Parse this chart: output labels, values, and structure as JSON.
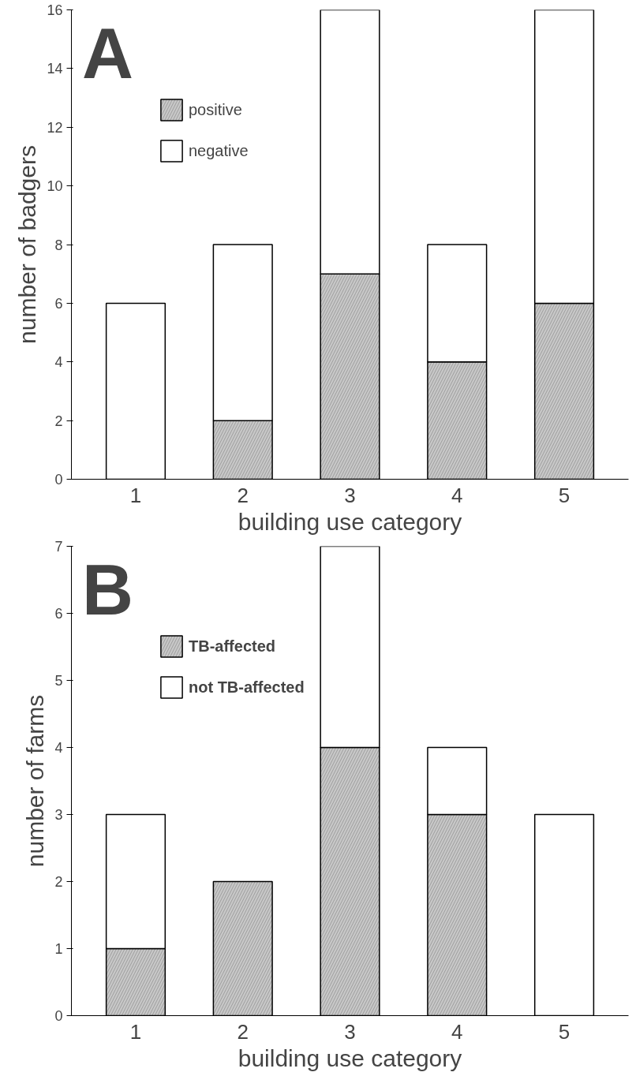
{
  "chart_data": [
    {
      "type": "bar",
      "title": "A",
      "stacked": true,
      "categories": [
        "1",
        "2",
        "3",
        "4",
        "5"
      ],
      "xlabel": "building use category",
      "ylabel": "number of badgers",
      "ylim": [
        0,
        16
      ],
      "yticks": [
        0,
        2,
        4,
        6,
        8,
        10,
        12,
        14,
        16
      ],
      "grid": false,
      "legend": "top left",
      "series": [
        {
          "name": "positive",
          "color": "#c8c8c8",
          "values": [
            0,
            2,
            7,
            4,
            6
          ]
        },
        {
          "name": "negative",
          "color": "#ffffff",
          "values": [
            6,
            6,
            9,
            4,
            10
          ]
        }
      ]
    },
    {
      "type": "bar",
      "title": "B",
      "stacked": true,
      "categories": [
        "1",
        "2",
        "3",
        "4",
        "5"
      ],
      "xlabel": "building use category",
      "ylabel": "number of farms",
      "ylim": [
        0,
        7
      ],
      "yticks": [
        0,
        1,
        2,
        3,
        4,
        5,
        6,
        7
      ],
      "grid": false,
      "legend": "top left",
      "series": [
        {
          "name": "TB-affected",
          "color": "#c8c8c8",
          "values": [
            1,
            2,
            4,
            3,
            0
          ]
        },
        {
          "name": "not TB-affected",
          "color": "#ffffff",
          "values": [
            2,
            0,
            3,
            1,
            3
          ]
        }
      ]
    }
  ]
}
